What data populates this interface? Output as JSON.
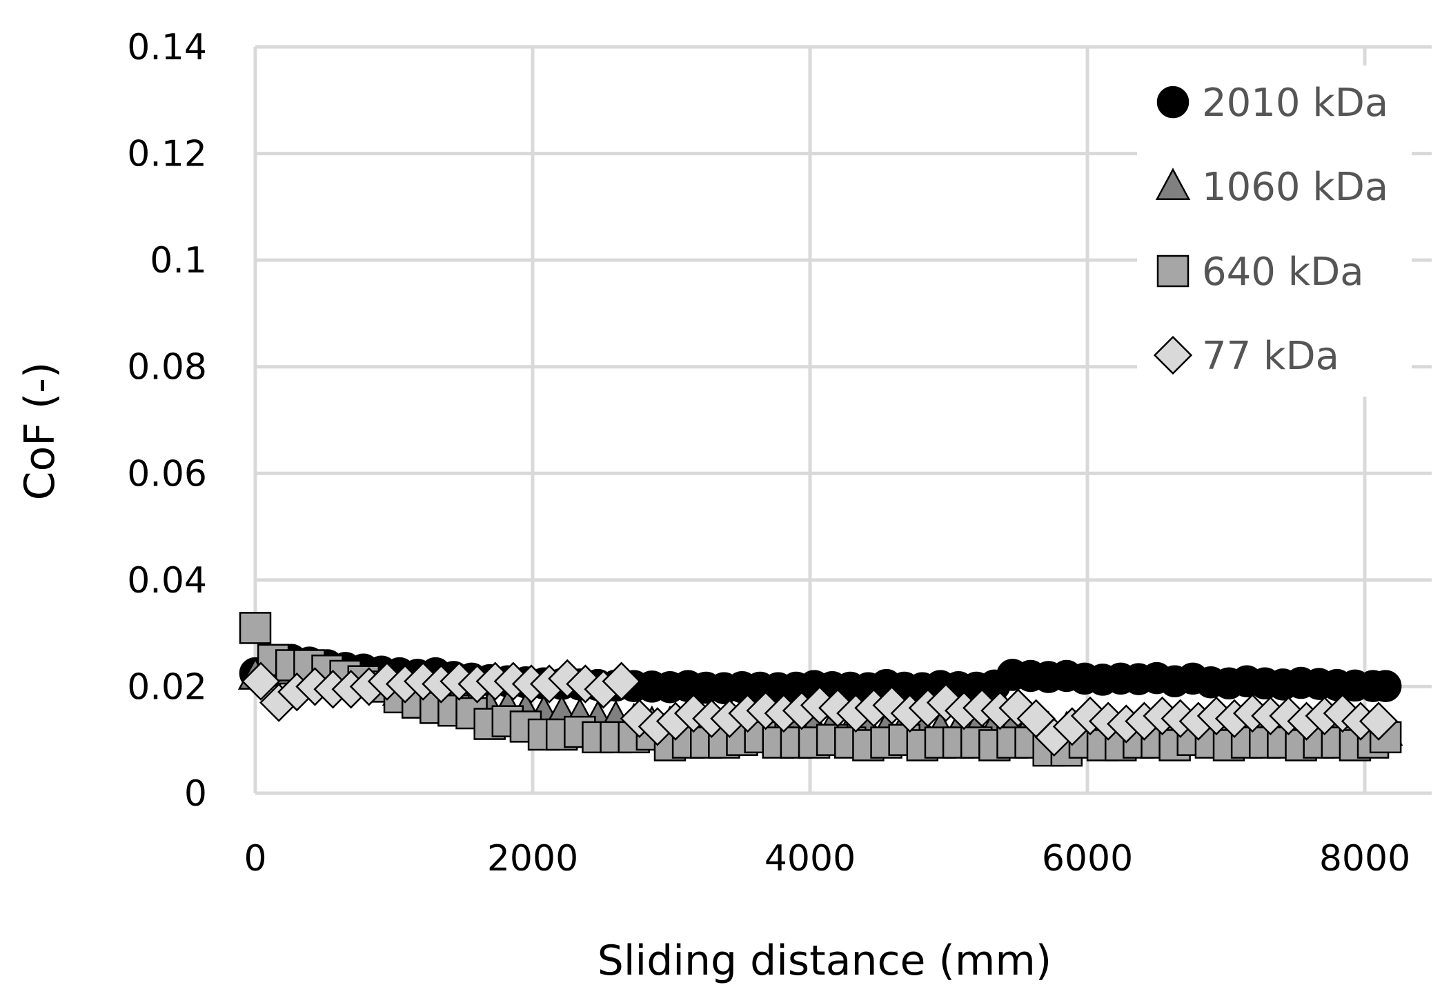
{
  "chart_data": {
    "type": "scatter",
    "xlabel": "Sliding distance (mm)",
    "ylabel": "CoF (-)",
    "xlim": [
      0,
      8400
    ],
    "ylim": [
      0,
      0.14
    ],
    "x_ticks": [
      "0",
      "2000",
      "4000",
      "6000",
      "8000"
    ],
    "y_ticks": [
      "0",
      "0.02",
      "0.04",
      "0.06",
      "0.08",
      "0.1",
      "0.12",
      "0.14"
    ],
    "grid": true,
    "legend_position": "top-right",
    "series": [
      {
        "name": "2010 kDa",
        "marker": "circle",
        "color": "#000000",
        "x": [
          0,
          130,
          260,
          390,
          520,
          650,
          780,
          910,
          1040,
          1170,
          1300,
          1430,
          1560,
          1690,
          1820,
          1950,
          2080,
          2210,
          2340,
          2470,
          2600,
          2730,
          2860,
          2990,
          3120,
          3250,
          3380,
          3510,
          3640,
          3770,
          3900,
          4030,
          4160,
          4290,
          4420,
          4550,
          4680,
          4810,
          4940,
          5070,
          5200,
          5330,
          5460,
          5590,
          5720,
          5850,
          5980,
          6110,
          6240,
          6370,
          6500,
          6630,
          6760,
          6890,
          7020,
          7150,
          7280,
          7410,
          7540,
          7670,
          7800,
          7930,
          8060,
          8150
        ],
        "y": [
          0.0225,
          0.023,
          0.025,
          0.0245,
          0.024,
          0.0235,
          0.0232,
          0.0228,
          0.0225,
          0.0222,
          0.0225,
          0.0218,
          0.0215,
          0.0212,
          0.021,
          0.0208,
          0.0206,
          0.0205,
          0.0204,
          0.0203,
          0.0202,
          0.0201,
          0.02,
          0.0199,
          0.0201,
          0.0198,
          0.0197,
          0.0199,
          0.0198,
          0.0197,
          0.0198,
          0.0201,
          0.0199,
          0.0198,
          0.0197,
          0.0203,
          0.0198,
          0.0197,
          0.0201,
          0.0199,
          0.0198,
          0.0202,
          0.0222,
          0.022,
          0.0218,
          0.022,
          0.0215,
          0.0213,
          0.0215,
          0.0214,
          0.0216,
          0.021,
          0.0215,
          0.0208,
          0.0206,
          0.021,
          0.0206,
          0.0204,
          0.0207,
          0.0205,
          0.0203,
          0.0202,
          0.0201,
          0.0201
        ]
      },
      {
        "name": "1060 kDa",
        "marker": "triangle",
        "color": "#808080",
        "x": [
          0,
          130,
          260,
          390,
          520,
          650,
          780,
          910,
          1040,
          1170,
          1300,
          1430,
          1560,
          1690,
          1820,
          1950,
          2080,
          2210,
          2340,
          2470,
          2600,
          2730,
          2860,
          2990,
          3120,
          3250,
          3380,
          3510,
          3640,
          3770,
          3900,
          4030,
          4160,
          4290,
          4420,
          4550,
          4680,
          4810,
          4940,
          5070,
          5200,
          5330,
          5460,
          5590,
          5720,
          5850,
          5980,
          6110,
          6240,
          6370,
          6500,
          6630,
          6760,
          6890,
          7020,
          7150,
          7280,
          7410,
          7540,
          7670,
          7800,
          7930,
          8060,
          8150
        ],
        "y": [
          0.022,
          0.023,
          0.023,
          0.022,
          0.022,
          0.0215,
          0.021,
          0.02,
          0.019,
          0.018,
          0.018,
          0.0175,
          0.017,
          0.016,
          0.016,
          0.0155,
          0.015,
          0.015,
          0.0145,
          0.014,
          0.014,
          0.0135,
          0.013,
          0.013,
          0.013,
          0.0125,
          0.0125,
          0.013,
          0.0125,
          0.0125,
          0.012,
          0.0125,
          0.0125,
          0.012,
          0.012,
          0.012,
          0.0125,
          0.012,
          0.012,
          0.012,
          0.012,
          0.0125,
          0.0125,
          0.013,
          0.012,
          0.012,
          0.0125,
          0.012,
          0.012,
          0.012,
          0.012,
          0.0115,
          0.012,
          0.012,
          0.0115,
          0.0115,
          0.012,
          0.0115,
          0.0115,
          0.0115,
          0.0115,
          0.0115,
          0.0115,
          0.0115
        ]
      },
      {
        "name": "640 kDa",
        "marker": "square",
        "color": "#a6a6a6",
        "x": [
          0,
          130,
          260,
          390,
          520,
          650,
          780,
          910,
          1040,
          1170,
          1300,
          1430,
          1560,
          1690,
          1820,
          1950,
          2080,
          2210,
          2340,
          2470,
          2600,
          2730,
          2860,
          2990,
          3120,
          3250,
          3380,
          3510,
          3640,
          3770,
          3900,
          4030,
          4160,
          4290,
          4420,
          4550,
          4680,
          4810,
          4940,
          5070,
          5200,
          5330,
          5460,
          5590,
          5720,
          5850,
          5980,
          6110,
          6240,
          6370,
          6500,
          6630,
          6760,
          6890,
          7020,
          7150,
          7280,
          7410,
          7540,
          7670,
          7800,
          7930,
          8060,
          8150
        ],
        "y": [
          0.031,
          0.025,
          0.024,
          0.024,
          0.023,
          0.022,
          0.021,
          0.02,
          0.018,
          0.017,
          0.016,
          0.0155,
          0.015,
          0.013,
          0.0135,
          0.0125,
          0.011,
          0.011,
          0.0115,
          0.0105,
          0.0105,
          0.0105,
          0.011,
          0.009,
          0.0095,
          0.0095,
          0.0095,
          0.01,
          0.0105,
          0.0095,
          0.0095,
          0.0095,
          0.01,
          0.0095,
          0.009,
          0.0095,
          0.01,
          0.009,
          0.0095,
          0.0095,
          0.0095,
          0.009,
          0.0095,
          0.0095,
          0.008,
          0.008,
          0.0095,
          0.009,
          0.009,
          0.0095,
          0.0095,
          0.009,
          0.01,
          0.0095,
          0.009,
          0.0095,
          0.0095,
          0.0095,
          0.009,
          0.0095,
          0.0095,
          0.009,
          0.0095,
          0.0105
        ]
      },
      {
        "name": "77 kDa",
        "marker": "diamond",
        "color": "#d9d9d9",
        "x": [
          40,
          170,
          300,
          430,
          560,
          690,
          820,
          950,
          1080,
          1210,
          1340,
          1470,
          1600,
          1730,
          1860,
          1990,
          2120,
          2250,
          2380,
          2510,
          2640,
          2770,
          2900,
          3030,
          3160,
          3290,
          3420,
          3550,
          3680,
          3810,
          3940,
          4070,
          4200,
          4330,
          4460,
          4590,
          4720,
          4850,
          4980,
          5110,
          5240,
          5370,
          5500,
          5630,
          5760,
          5890,
          6020,
          6150,
          6280,
          6410,
          6540,
          6670,
          6800,
          6930,
          7060,
          7190,
          7320,
          7450,
          7580,
          7710,
          7840,
          7970,
          8100
        ],
        "y": [
          0.021,
          0.017,
          0.019,
          0.02,
          0.0195,
          0.0195,
          0.02,
          0.021,
          0.0205,
          0.021,
          0.0205,
          0.021,
          0.0205,
          0.021,
          0.021,
          0.0205,
          0.0205,
          0.0215,
          0.0205,
          0.0195,
          0.021,
          0.014,
          0.0125,
          0.0135,
          0.015,
          0.014,
          0.014,
          0.015,
          0.0155,
          0.015,
          0.0155,
          0.0165,
          0.016,
          0.015,
          0.016,
          0.0165,
          0.015,
          0.016,
          0.017,
          0.0155,
          0.016,
          0.0155,
          0.016,
          0.014,
          0.0105,
          0.0125,
          0.0145,
          0.0135,
          0.013,
          0.0135,
          0.0145,
          0.014,
          0.0135,
          0.0145,
          0.014,
          0.015,
          0.0145,
          0.0145,
          0.0135,
          0.0145,
          0.015,
          0.0135,
          0.0135
        ]
      }
    ]
  }
}
